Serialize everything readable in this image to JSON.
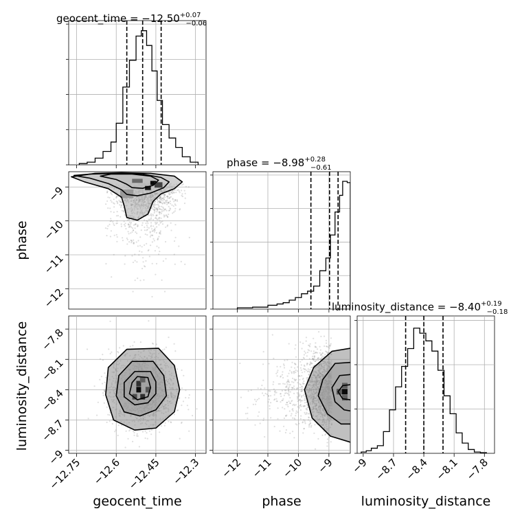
{
  "chart_data": [
    {
      "type": "histogram",
      "panel": "geocent_time-1d",
      "title": "geocent_time = −12.50",
      "title_sup": "+0.07",
      "title_sub": "−0.06",
      "xlim": [
        -12.78,
        -12.26
      ],
      "ylim": [
        0,
        1
      ],
      "xticks": [
        -12.75,
        -12.6,
        -12.45,
        -12.3
      ],
      "bin_edges": [
        -12.74,
        -12.71,
        -12.68,
        -12.65,
        -12.62,
        -12.6,
        -12.575,
        -12.55,
        -12.525,
        -12.505,
        -12.485,
        -12.465,
        -12.445,
        -12.425,
        -12.4,
        -12.375,
        -12.35,
        -12.32,
        -12.29
      ],
      "densities": [
        0.01,
        0.02,
        0.05,
        0.1,
        0.17,
        0.31,
        0.58,
        0.78,
        0.96,
        1.0,
        0.89,
        0.7,
        0.48,
        0.3,
        0.2,
        0.13,
        0.06,
        0.02
      ],
      "quantile_lines": [
        -12.56,
        -12.5,
        -12.43
      ]
    },
    {
      "type": "histogram",
      "panel": "phase-1d",
      "title": "phase = −8.98",
      "title_sup": "+0.28",
      "title_sub": "−0.61",
      "xlim": [
        -12.8,
        -8.3
      ],
      "ylim": [
        0,
        1
      ],
      "xticks": [
        -12,
        -11,
        -10,
        -9
      ],
      "bin_edges": [
        -12.0,
        -11.5,
        -11.0,
        -10.7,
        -10.5,
        -10.3,
        -10.1,
        -9.9,
        -9.7,
        -9.5,
        -9.3,
        -9.1,
        -8.95,
        -8.8,
        -8.65,
        -8.55,
        -8.4,
        -8.3
      ],
      "densities": [
        0.01,
        0.015,
        0.03,
        0.04,
        0.05,
        0.07,
        0.09,
        0.12,
        0.14,
        0.18,
        0.3,
        0.4,
        0.58,
        0.76,
        0.89,
        1.0,
        0.99
      ],
      "quantile_lines": [
        -9.59,
        -8.98,
        -8.7
      ]
    },
    {
      "type": "histogram",
      "panel": "luminosity_distance-1d",
      "title": "luminosity_distance = −8.40",
      "title_sup": "+0.19",
      "title_sub": "−0.18",
      "xlim": [
        -9.06,
        -7.7
      ],
      "ylim": [
        0,
        1
      ],
      "xticks": [
        -9.0,
        -8.7,
        -8.4,
        -8.1,
        -7.8
      ],
      "bin_edges": [
        -9.02,
        -8.97,
        -8.92,
        -8.86,
        -8.8,
        -8.74,
        -8.68,
        -8.62,
        -8.56,
        -8.5,
        -8.44,
        -8.38,
        -8.32,
        -8.26,
        -8.2,
        -8.14,
        -8.08,
        -8.02,
        -7.96,
        -7.9,
        -7.84,
        -7.78
      ],
      "densities": [
        0.01,
        0.02,
        0.04,
        0.06,
        0.17,
        0.34,
        0.52,
        0.68,
        0.82,
        0.98,
        0.94,
        0.88,
        0.8,
        0.65,
        0.45,
        0.31,
        0.16,
        0.08,
        0.03,
        0.01,
        0.005
      ],
      "quantile_lines": [
        -8.58,
        -8.4,
        -8.21
      ]
    },
    {
      "type": "scatter_contour",
      "panel": "geocent_time-vs-phase",
      "xlim": [
        -12.78,
        -12.26
      ],
      "ylim": [
        -12.6,
        -8.55
      ],
      "yticks": [
        -9,
        -10,
        -11,
        -12
      ],
      "ylabel": "phase",
      "x_mean": -12.495,
      "x_sd": 0.06,
      "y_mode": -8.9,
      "y_scale": 0.45,
      "y_floor": -12.3,
      "hot_cells": [
        {
          "x": -12.46,
          "y": -8.88,
          "w": 0.022,
          "h": 0.12,
          "level": 1.0
        },
        {
          "x": -12.48,
          "y": -9.03,
          "w": 0.022,
          "h": 0.12,
          "level": 0.95
        },
        {
          "x": -12.44,
          "y": -8.94,
          "w": 0.03,
          "h": 0.16,
          "level": 0.7
        },
        {
          "x": -12.52,
          "y": -8.82,
          "w": 0.04,
          "h": 0.12,
          "level": 0.5
        },
        {
          "x": -12.56,
          "y": -9.2,
          "w": 0.05,
          "h": 0.25,
          "level": 0.25
        }
      ],
      "contours": [
        [
          [
            -12.7,
            -8.62
          ],
          [
            -12.6,
            -8.6
          ],
          [
            -12.5,
            -8.62
          ],
          [
            -12.43,
            -8.72
          ],
          [
            -12.4,
            -8.85
          ],
          [
            -12.42,
            -9.02
          ],
          [
            -12.47,
            -9.18
          ],
          [
            -12.52,
            -9.26
          ],
          [
            -12.56,
            -9.22
          ],
          [
            -12.58,
            -9.08
          ],
          [
            -12.63,
            -8.9
          ],
          [
            -12.7,
            -8.74
          ],
          [
            -12.76,
            -8.66
          ]
        ],
        [
          [
            -12.62,
            -8.62
          ],
          [
            -12.54,
            -8.62
          ],
          [
            -12.47,
            -8.68
          ],
          [
            -12.44,
            -8.8
          ],
          [
            -12.46,
            -8.95
          ],
          [
            -12.5,
            -9.04
          ],
          [
            -12.54,
            -9.02
          ],
          [
            -12.56,
            -8.92
          ],
          [
            -12.6,
            -8.78
          ],
          [
            -12.66,
            -8.68
          ]
        ],
        [
          [
            -12.68,
            -8.6
          ],
          [
            -12.58,
            -8.58
          ],
          [
            -12.47,
            -8.6
          ],
          [
            -12.38,
            -8.68
          ],
          [
            -12.35,
            -8.85
          ],
          [
            -12.38,
            -9.05
          ],
          [
            -12.43,
            -9.2
          ],
          [
            -12.46,
            -9.42
          ],
          [
            -12.48,
            -9.8
          ],
          [
            -12.52,
            -9.98
          ],
          [
            -12.56,
            -9.9
          ],
          [
            -12.57,
            -9.55
          ],
          [
            -12.58,
            -9.3
          ],
          [
            -12.63,
            -9.05
          ],
          [
            -12.72,
            -8.85
          ],
          [
            -12.77,
            -8.7
          ]
        ]
      ]
    },
    {
      "type": "scatter_contour",
      "panel": "geocent_time-vs-luminosity_distance",
      "xlim": [
        -12.78,
        -12.26
      ],
      "ylim": [
        -9.03,
        -7.67
      ],
      "xticks": [
        -12.75,
        -12.6,
        -12.45,
        -12.3
      ],
      "yticks": [
        -7.8,
        -8.1,
        -8.4,
        -8.7,
        -9.0
      ],
      "xlabel": "geocent_time",
      "ylabel": "luminosity_distance",
      "x_mean": -12.5,
      "x_sd": 0.062,
      "y_mean": -8.4,
      "y_sd": 0.19,
      "hot_cells": [
        {
          "x": -12.515,
          "y": -8.4,
          "w": 0.018,
          "h": 0.055,
          "level": 1.0
        },
        {
          "x": -12.515,
          "y": -8.34,
          "w": 0.018,
          "h": 0.055,
          "level": 0.8
        },
        {
          "x": -12.5,
          "y": -8.47,
          "w": 0.018,
          "h": 0.055,
          "level": 0.8
        },
        {
          "x": -12.53,
          "y": -8.47,
          "w": 0.018,
          "h": 0.055,
          "level": 0.65
        },
        {
          "x": -12.48,
          "y": -8.4,
          "w": 0.018,
          "h": 0.055,
          "level": 0.6
        },
        {
          "x": -12.5,
          "y": -8.3,
          "w": 0.02,
          "h": 0.055,
          "level": 0.55
        }
      ],
      "contours": [
        [
          [
            -12.52,
            -8.27
          ],
          [
            -12.48,
            -8.28
          ],
          [
            -12.47,
            -8.38
          ],
          [
            -12.48,
            -8.47
          ],
          [
            -12.52,
            -8.5
          ],
          [
            -12.55,
            -8.44
          ],
          [
            -12.54,
            -8.33
          ]
        ],
        [
          [
            -12.53,
            -8.22
          ],
          [
            -12.47,
            -8.22
          ],
          [
            -12.45,
            -8.32
          ],
          [
            -12.45,
            -8.44
          ],
          [
            -12.48,
            -8.53
          ],
          [
            -12.53,
            -8.55
          ],
          [
            -12.57,
            -8.47
          ],
          [
            -12.57,
            -8.33
          ]
        ],
        [
          [
            -12.54,
            -8.12
          ],
          [
            -12.46,
            -8.12
          ],
          [
            -12.42,
            -8.26
          ],
          [
            -12.41,
            -8.46
          ],
          [
            -12.45,
            -8.6
          ],
          [
            -12.51,
            -8.66
          ],
          [
            -12.57,
            -8.62
          ],
          [
            -12.6,
            -8.46
          ],
          [
            -12.59,
            -8.26
          ]
        ],
        [
          [
            -12.56,
            -8.0
          ],
          [
            -12.44,
            -7.99
          ],
          [
            -12.38,
            -8.16
          ],
          [
            -12.36,
            -8.4
          ],
          [
            -12.38,
            -8.62
          ],
          [
            -12.45,
            -8.78
          ],
          [
            -12.53,
            -8.8
          ],
          [
            -12.61,
            -8.7
          ],
          [
            -12.64,
            -8.45
          ],
          [
            -12.63,
            -8.18
          ]
        ]
      ]
    },
    {
      "type": "scatter_contour",
      "panel": "phase-vs-luminosity_distance",
      "xlim": [
        -12.8,
        -8.3
      ],
      "ylim": [
        -9.03,
        -7.67
      ],
      "xticks": [
        -12,
        -11,
        -10,
        -9
      ],
      "xlabel": "phase",
      "x_mode": -8.9,
      "x_scale": 0.45,
      "x_floor": -12.3,
      "y_mean": -8.4,
      "y_sd": 0.19,
      "hot_cells": [
        {
          "x": -8.48,
          "y": -8.42,
          "w": 0.18,
          "h": 0.055,
          "level": 1.0
        },
        {
          "x": -8.66,
          "y": -8.42,
          "w": 0.18,
          "h": 0.055,
          "level": 0.6
        },
        {
          "x": -8.48,
          "y": -8.36,
          "w": 0.18,
          "h": 0.055,
          "level": 0.55
        },
        {
          "x": -8.48,
          "y": -8.48,
          "w": 0.18,
          "h": 0.055,
          "level": 0.55
        }
      ],
      "contours": [
        [
          [
            -8.3,
            -8.35
          ],
          [
            -8.55,
            -8.36
          ],
          [
            -8.7,
            -8.42
          ],
          [
            -8.55,
            -8.49
          ],
          [
            -8.3,
            -8.5
          ]
        ],
        [
          [
            -8.3,
            -8.25
          ],
          [
            -8.65,
            -8.26
          ],
          [
            -8.9,
            -8.38
          ],
          [
            -8.8,
            -8.52
          ],
          [
            -8.5,
            -8.6
          ],
          [
            -8.3,
            -8.61
          ]
        ],
        [
          [
            -8.3,
            -8.13
          ],
          [
            -8.8,
            -8.14
          ],
          [
            -9.2,
            -8.3
          ],
          [
            -9.35,
            -8.46
          ],
          [
            -9.05,
            -8.64
          ],
          [
            -8.6,
            -8.74
          ],
          [
            -8.3,
            -8.74
          ]
        ],
        [
          [
            -8.3,
            -7.99
          ],
          [
            -8.9,
            -8.02
          ],
          [
            -9.5,
            -8.18
          ],
          [
            -9.8,
            -8.4
          ],
          [
            -9.55,
            -8.68
          ],
          [
            -8.95,
            -8.86
          ],
          [
            -8.3,
            -8.92
          ]
        ]
      ]
    }
  ]
}
